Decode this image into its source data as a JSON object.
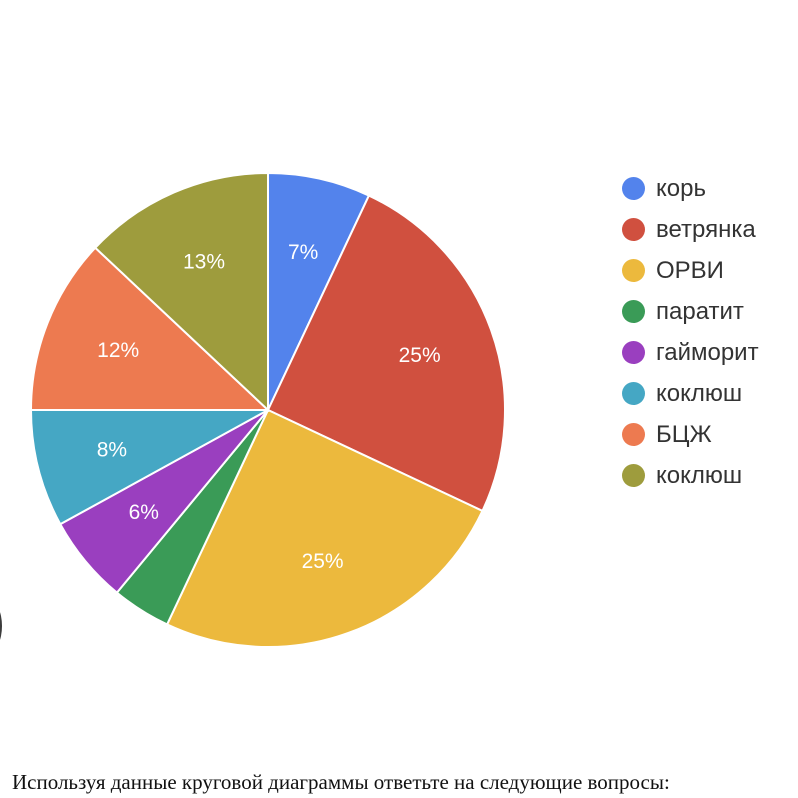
{
  "chart_data": {
    "type": "pie",
    "slices": [
      {
        "label": "корь",
        "value": 7,
        "data_label": "7%",
        "color": "#5383ec"
      },
      {
        "label": "ветрянка",
        "value": 25,
        "data_label": "25%",
        "color": "#d0503f"
      },
      {
        "label": "ОРВИ",
        "value": 25,
        "data_label": "25%",
        "color": "#ecb93d"
      },
      {
        "label": "паратит",
        "value": 4,
        "data_label": "",
        "color": "#3a9b57"
      },
      {
        "label": "гайморит",
        "value": 6,
        "data_label": "6%",
        "color": "#9a3fbf"
      },
      {
        "label": "коклюш",
        "value": 8,
        "data_label": "8%",
        "color": "#45a7c4"
      },
      {
        "label": "БЦЖ",
        "value": 12,
        "data_label": "12%",
        "color": "#ed7a50"
      },
      {
        "label": "коклюш",
        "value": 13,
        "data_label": "13%",
        "color": "#9e9c3d"
      }
    ],
    "legend_position": "right",
    "start": "top, clockwise"
  },
  "caption": "Используя данные круговой диаграммы ответьте на следующие вопросы:"
}
